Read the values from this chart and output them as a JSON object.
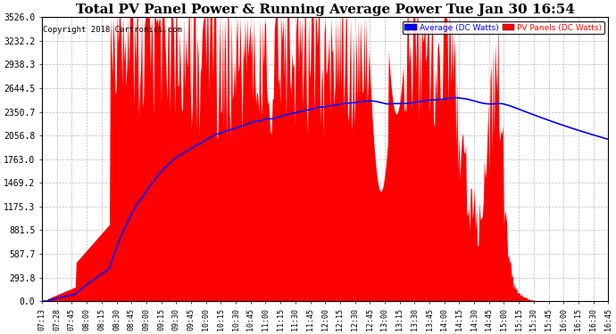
{
  "title": "Total PV Panel Power & Running Average Power Tue Jan 30 16:54",
  "copyright": "Copyright 2018 Cartronics.com",
  "legend_avg": "Average (DC Watts)",
  "legend_pv": "PV Panels (DC Watts)",
  "yticks": [
    0.0,
    293.8,
    587.7,
    881.5,
    1175.3,
    1469.2,
    1763.0,
    2056.8,
    2350.7,
    2644.5,
    2938.3,
    3232.2,
    3526.0
  ],
  "ymax": 3526.0,
  "ymin": 0.0,
  "bg_color": "#ffffff",
  "plot_bg": "#ffffff",
  "grid_color": "#bbbbbb",
  "red_color": "#ff0000",
  "blue_color": "#0000ff",
  "title_fontsize": 11,
  "xtick_labels": [
    "07:13",
    "07:28",
    "07:45",
    "08:00",
    "08:15",
    "08:30",
    "08:45",
    "09:00",
    "09:15",
    "09:30",
    "09:45",
    "10:00",
    "10:15",
    "10:30",
    "10:45",
    "11:00",
    "11:15",
    "11:30",
    "11:45",
    "12:00",
    "12:15",
    "12:30",
    "12:45",
    "13:00",
    "13:15",
    "13:30",
    "13:45",
    "14:00",
    "14:15",
    "14:30",
    "14:45",
    "15:00",
    "15:15",
    "15:30",
    "15:45",
    "16:00",
    "16:15",
    "16:30",
    "16:45"
  ]
}
